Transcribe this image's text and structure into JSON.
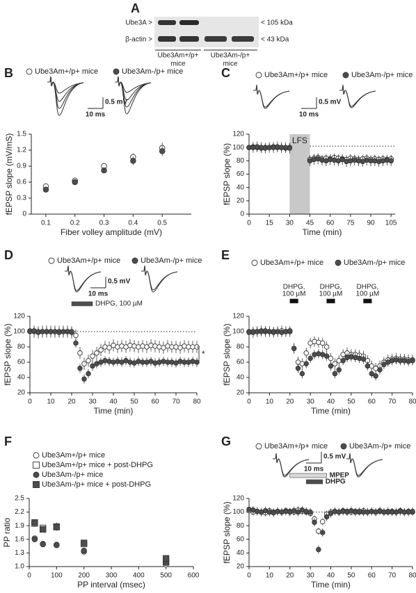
{
  "blot": {
    "label": "A",
    "rows": [
      "Ube3A >",
      "β-actin >"
    ],
    "sizes": [
      "< 105 kDa",
      "< 43 kDa"
    ],
    "group_labels": [
      [
        "Ube3Am+/p+",
        "mice"
      ],
      [
        "Ube3Am-/p+",
        "mice"
      ]
    ]
  },
  "chart_data": [
    {
      "type": "scatter",
      "label": "B",
      "x_label": "Fiber volley amplitude (mV)",
      "y_label": "fEPSP slope (mV/mS)",
      "scale_bar": {
        "y": "0.5 mV",
        "x": "10 ms"
      },
      "x": [
        0.1,
        0.2,
        0.3,
        0.4,
        0.5
      ],
      "xlim": [
        0.05,
        0.6
      ],
      "xticks": [
        0.1,
        0.2,
        0.3,
        0.4,
        0.5
      ],
      "ylim": [
        0,
        1.5
      ],
      "yticks": [
        0,
        0.3,
        0.6,
        0.9,
        1.2,
        1.5
      ],
      "series": [
        {
          "name": "Ube3Am+/p+ mice",
          "marker": "circle",
          "color": "#ffffff",
          "values": [
            0.52,
            0.63,
            0.9,
            1.07,
            1.24
          ],
          "errors": [
            0.04,
            0.04,
            0.06,
            0.07,
            0.1
          ]
        },
        {
          "name": "Ube3Am-/p+ mice",
          "marker": "circle",
          "color": "#4d4d4d",
          "values": [
            0.46,
            0.6,
            0.82,
            1.0,
            1.18
          ],
          "errors": [
            0.03,
            0.04,
            0.04,
            0.08,
            0.09
          ]
        }
      ]
    },
    {
      "type": "scatter",
      "label": "C",
      "x_label": "Time (min)",
      "y_label": "fEPSP slope (%)",
      "scale_bar": {
        "y": "0.5 mV",
        "x": "10 ms"
      },
      "shade": {
        "label": "LFS",
        "range": [
          30,
          45
        ]
      },
      "reference_line": 102,
      "x": [
        0,
        3,
        6,
        9,
        12,
        15,
        18,
        21,
        24,
        27,
        30,
        45,
        48,
        51,
        54,
        57,
        60,
        63,
        66,
        69,
        72,
        75,
        78,
        81,
        84,
        87,
        90,
        93,
        96,
        99,
        102,
        105
      ],
      "xlim": [
        0,
        108
      ],
      "xticks": [
        0,
        15,
        30,
        45,
        60,
        75,
        90,
        105
      ],
      "ylim": [
        0,
        120
      ],
      "yticks": [
        0,
        20,
        40,
        60,
        80,
        100,
        120
      ],
      "series": [
        {
          "name": "Ube3Am+/p+ mice",
          "marker": "circle",
          "color": "#ffffff",
          "error": 6,
          "values": [
            100,
            101,
            100,
            99,
            100,
            100,
            101,
            100,
            100,
            99,
            100,
            82,
            84,
            85,
            83,
            84,
            83,
            85,
            84,
            83,
            82,
            84,
            83,
            82,
            83,
            84,
            82,
            83,
            82,
            83,
            82,
            83
          ]
        },
        {
          "name": "Ube3Am-/p+ mice",
          "marker": "circle",
          "color": "#4d4d4d",
          "error": 8,
          "values": [
            100,
            100,
            101,
            100,
            99,
            100,
            100,
            101,
            100,
            100,
            99,
            80,
            82,
            83,
            81,
            80,
            82,
            81,
            80,
            82,
            79,
            80,
            81,
            80,
            79,
            81,
            80,
            80,
            79,
            80,
            81,
            80
          ]
        }
      ]
    },
    {
      "type": "scatter",
      "label": "D",
      "x_label": "Time (min)",
      "y_label": "fEPSP slope (%)",
      "scale_bar": {
        "y": "0.5 mV",
        "x": "10 ms"
      },
      "reference_line": 100,
      "annotation": "*",
      "drug_bars": [
        {
          "label": "DHPG, 100 µM",
          "range": [
            20,
            30
          ],
          "color": "#4d4d4d"
        }
      ],
      "x": [
        0,
        2,
        4,
        6,
        8,
        10,
        12,
        14,
        16,
        18,
        20,
        22,
        24,
        26,
        28,
        30,
        32,
        34,
        36,
        38,
        40,
        42,
        44,
        46,
        48,
        50,
        52,
        54,
        56,
        58,
        60,
        62,
        64,
        66,
        68,
        70,
        72,
        74,
        76,
        78,
        80
      ],
      "xlim": [
        0,
        80
      ],
      "xticks": [
        0,
        10,
        20,
        30,
        40,
        50,
        60,
        70,
        80
      ],
      "ylim": [
        20,
        120
      ],
      "yticks": [
        20,
        40,
        60,
        80,
        100,
        120
      ],
      "series": [
        {
          "name": "Ube3Am+/p+ mice",
          "marker": "circle",
          "color": "#ffffff",
          "error": 8,
          "values": [
            101,
            100,
            99,
            100,
            100,
            100,
            100,
            100,
            100,
            100,
            99,
            95,
            72,
            58,
            62,
            68,
            72,
            76,
            80,
            79,
            82,
            80,
            81,
            80,
            82,
            81,
            80,
            81,
            80,
            82,
            81,
            80,
            79,
            81,
            80,
            80,
            79,
            81,
            80,
            80,
            80
          ]
        },
        {
          "name": "Ube3Am-/p+ mice",
          "marker": "circle",
          "color": "#4d4d4d",
          "error": 6,
          "values": [
            100,
            101,
            100,
            100,
            100,
            100,
            100,
            99,
            100,
            100,
            100,
            85,
            52,
            38,
            45,
            55,
            58,
            60,
            62,
            61,
            60,
            61,
            60,
            62,
            60,
            59,
            61,
            60,
            60,
            61,
            59,
            60,
            61,
            60,
            60,
            59,
            61,
            60,
            60,
            61,
            60
          ]
        }
      ]
    },
    {
      "type": "scatter",
      "label": "E",
      "x_label": "Time (min)",
      "y_label": "fEPSP slope (%)",
      "drug_bars": [
        {
          "label": [
            "DHPG,",
            "100 µM"
          ],
          "range": [
            20,
            24
          ],
          "color": "#111111"
        },
        {
          "label": [
            "DHPG,",
            "100 µM"
          ],
          "range": [
            38,
            42
          ],
          "color": "#111111"
        },
        {
          "label": [
            "DHPG,",
            "100 µM"
          ],
          "range": [
            56,
            60
          ],
          "color": "#111111"
        }
      ],
      "x": [
        0,
        2,
        4,
        6,
        8,
        10,
        12,
        14,
        16,
        18,
        20,
        22,
        24,
        26,
        28,
        30,
        32,
        34,
        36,
        38,
        40,
        42,
        44,
        46,
        48,
        50,
        52,
        54,
        56,
        58,
        60,
        62,
        64,
        66,
        68,
        70,
        72,
        74,
        76,
        78,
        80
      ],
      "xlim": [
        0,
        80
      ],
      "xticks": [
        0,
        10,
        20,
        30,
        40,
        50,
        60,
        70,
        80
      ],
      "ylim": [
        20,
        120
      ],
      "yticks": [
        20,
        40,
        60,
        80,
        100,
        120
      ],
      "series": [
        {
          "name": "Ube3Am+/p+ mice",
          "marker": "circle",
          "color": "#ffffff",
          "error": 7,
          "values": [
            100,
            99,
            100,
            101,
            100,
            100,
            99,
            100,
            101,
            100,
            100,
            78,
            60,
            58,
            72,
            85,
            87,
            86,
            85,
            80,
            65,
            58,
            62,
            70,
            72,
            70,
            70,
            69,
            68,
            62,
            55,
            52,
            55,
            60,
            63,
            64,
            65,
            64,
            64,
            63,
            63
          ]
        },
        {
          "name": "Ube3Am-/p+ mice",
          "marker": "circle",
          "color": "#4d4d4d",
          "error": 6,
          "values": [
            99,
            100,
            100,
            100,
            101,
            100,
            100,
            100,
            99,
            100,
            101,
            78,
            52,
            45,
            58,
            65,
            70,
            71,
            70,
            68,
            55,
            45,
            50,
            62,
            66,
            67,
            66,
            65,
            64,
            55,
            45,
            42,
            50,
            57,
            60,
            62,
            63,
            62,
            62,
            61,
            62
          ]
        }
      ]
    },
    {
      "type": "scatter",
      "label": "F",
      "x_label": "PP interval (msec)",
      "y_label": "PP ratio",
      "x": [
        20,
        50,
        100,
        200,
        500
      ],
      "xlim": [
        0,
        600
      ],
      "xticks": [
        0,
        100,
        200,
        300,
        400,
        500,
        600
      ],
      "ylim": [
        1.0,
        2.5
      ],
      "yticks": [
        {
          "value": 1.0,
          "label": "1.0"
        },
        1.3,
        1.6,
        1.9,
        2.2,
        2.5
      ],
      "series": [
        {
          "name": "Ube3Am+/p+ mice",
          "marker": "circle",
          "color": "#ffffff",
          "values": [
            1.62,
            1.5,
            1.48,
            1.33,
            1.05
          ],
          "errors": [
            0.03,
            0.02,
            0.02,
            0.02,
            0.02
          ]
        },
        {
          "name": "Ube3Am+/p+ mice + post-DHPG",
          "marker": "square",
          "color": "#ffffff",
          "values": [
            1.95,
            1.85,
            1.88,
            1.5,
            1.1
          ],
          "errors": [
            0.08,
            0.07,
            0.09,
            0.04,
            0.03
          ]
        },
        {
          "name": "Ube3Am-/p+ mice",
          "marker": "circle",
          "color": "#4d4d4d",
          "values": [
            1.6,
            1.49,
            1.47,
            1.35,
            1.08
          ],
          "errors": [
            0.03,
            0.02,
            0.02,
            0.02,
            0.02
          ]
        },
        {
          "name": "Ube3Am-/p+ mice + post-DHPG",
          "marker": "square",
          "color": "#4d4d4d",
          "values": [
            1.97,
            1.82,
            1.87,
            1.52,
            1.18
          ],
          "errors": [
            0.07,
            0.06,
            0.08,
            0.04,
            0.03
          ]
        }
      ]
    },
    {
      "type": "scatter",
      "label": "G",
      "x_label": "Time (min)",
      "y_label": "fEPSP slope (%)",
      "scale_bar": {
        "y": "0.5 mV",
        "x": "10 ms"
      },
      "reference_line": 100,
      "drug_bars": [
        {
          "label": "MPEP",
          "range": [
            20,
            38
          ],
          "color": "#d9d9d9"
        },
        {
          "label": "DHPG",
          "range": [
            28,
            36
          ],
          "color": "#4d4d4d"
        }
      ],
      "x": [
        0,
        2,
        4,
        6,
        8,
        10,
        12,
        14,
        16,
        18,
        20,
        22,
        24,
        26,
        28,
        30,
        32,
        34,
        36,
        38,
        40,
        42,
        44,
        46,
        48,
        50,
        52,
        54,
        56,
        58,
        60,
        62,
        64,
        66,
        68,
        70,
        72,
        74,
        76,
        78,
        80
      ],
      "xlim": [
        0,
        80
      ],
      "xticks": [
        0,
        10,
        20,
        30,
        40,
        50,
        60,
        70,
        80
      ],
      "ylim": [
        20,
        120
      ],
      "yticks": [
        20,
        40,
        60,
        80,
        100,
        120
      ],
      "series": [
        {
          "name": "Ube3Am+/p+ mice",
          "marker": "circle",
          "color": "#ffffff",
          "error": 5,
          "values": [
            102,
            100,
            101,
            100,
            99,
            102,
            100,
            101,
            100,
            102,
            101,
            100,
            103,
            101,
            100,
            98,
            90,
            72,
            86,
            97,
            100,
            101,
            100,
            102,
            101,
            100,
            101,
            100,
            102,
            100,
            101,
            100,
            101,
            100,
            100,
            101,
            100,
            102,
            100,
            101,
            100
          ]
        },
        {
          "name": "Ube3Am-/p+ mice",
          "marker": "circle",
          "color": "#4d4d4d",
          "error": 6,
          "values": [
            104,
            103,
            101,
            100,
            102,
            100,
            99,
            101,
            100,
            101,
            100,
            102,
            100,
            103,
            101,
            100,
            85,
            45,
            70,
            93,
            98,
            101,
            100,
            101,
            100,
            102,
            100,
            101,
            100,
            100,
            101,
            100,
            102,
            100,
            101,
            100,
            100,
            101,
            100,
            100,
            101
          ]
        }
      ]
    }
  ]
}
